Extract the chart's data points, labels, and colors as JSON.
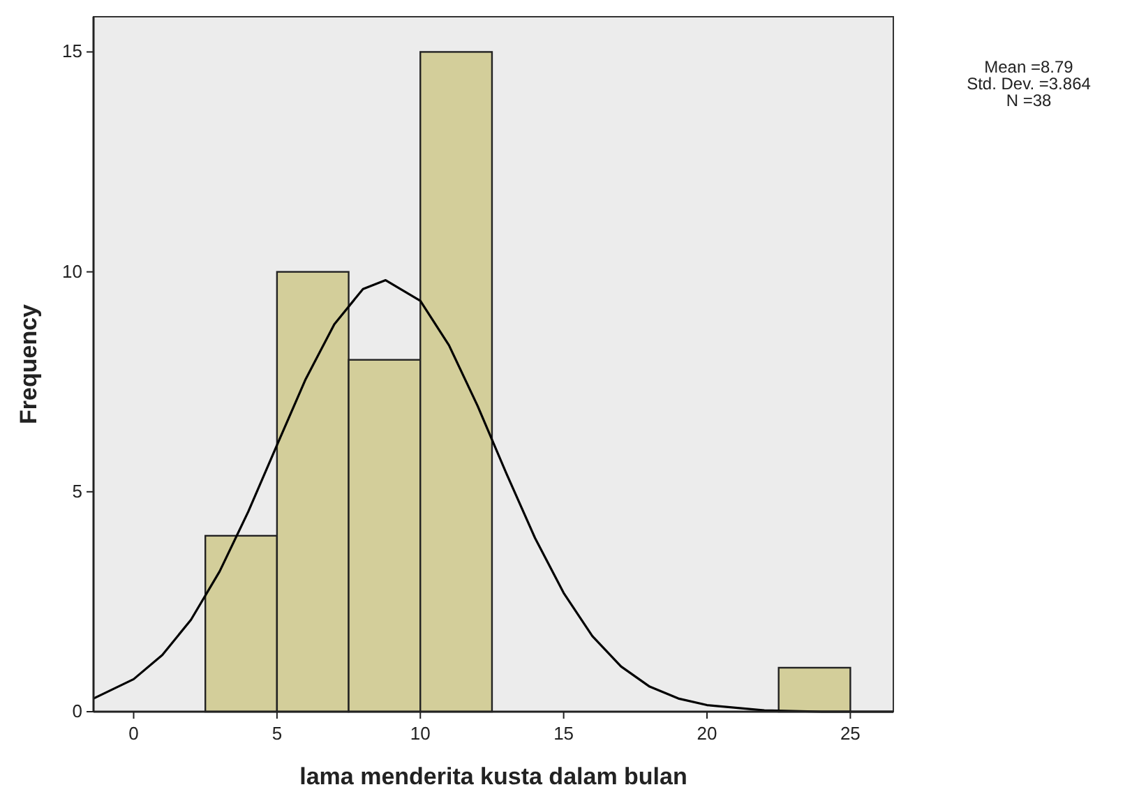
{
  "chart_data": {
    "type": "histogram",
    "xlabel": "lama menderita kusta dalam bulan",
    "ylabel": "Frequency",
    "bins": [
      2.5,
      5,
      7.5,
      10,
      12.5,
      15,
      17.5,
      20,
      22.5,
      25
    ],
    "values": [
      4,
      10,
      8,
      15,
      0,
      0,
      0,
      0,
      1
    ],
    "color": "#d3ce9a",
    "series": [
      {
        "type": "line",
        "color": "#000000",
        "x": [
          -1.4,
          0,
          1,
          2,
          3,
          4,
          5,
          6,
          7,
          8,
          8.79,
          10,
          11,
          12,
          13,
          14,
          15,
          16,
          17,
          18,
          19,
          20,
          22,
          24,
          26.5
        ],
        "values": [
          0.3,
          0.74,
          1.29,
          2.09,
          3.19,
          4.55,
          6.06,
          7.56,
          8.81,
          9.61,
          9.81,
          9.34,
          8.33,
          6.95,
          5.42,
          3.95,
          2.7,
          1.72,
          1.03,
          0.57,
          0.3,
          0.15,
          0.03,
          0,
          0
        ]
      }
    ],
    "xlim": [
      -1.4,
      26.5
    ],
    "ylim": [
      0,
      15.8
    ],
    "xticks": [
      0,
      5,
      10,
      15,
      20,
      25
    ],
    "yticks": [
      0,
      5,
      10,
      15
    ],
    "annotations": [
      "Mean =8.79",
      "Std. Dev. =3.864",
      "N =38"
    ]
  }
}
